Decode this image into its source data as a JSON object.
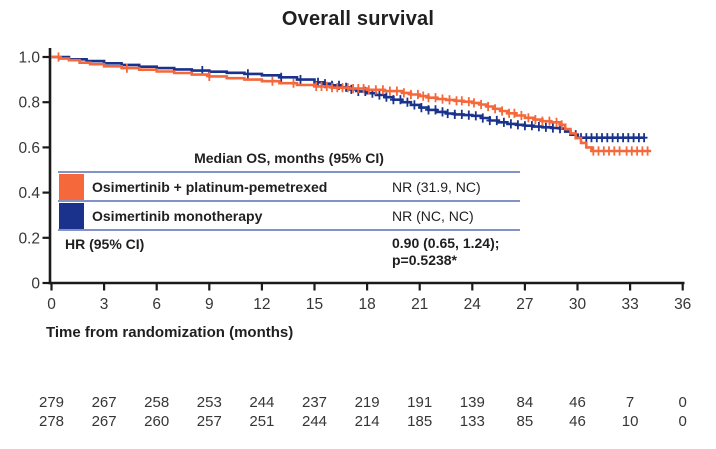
{
  "colors": {
    "axis": "#1a1a1a",
    "tick_text": "#363636",
    "text": "#1f1f1f",
    "table_rule": "#8193c7",
    "orange": "#f4683c",
    "navy": "#1a328c"
  },
  "chart_data": {
    "type": "line",
    "subtype": "kaplan-meier-step",
    "title": "Overall survival",
    "xlabel": "Time from randomization (months)",
    "ylabel": "",
    "xlim": [
      0,
      36
    ],
    "ylim": [
      0,
      1.0
    ],
    "grid": false,
    "x_ticks": [
      0,
      3,
      6,
      9,
      12,
      15,
      18,
      21,
      24,
      27,
      30,
      33,
      36
    ],
    "y_ticks": [
      {
        "label": "1.0",
        "value": 1.0
      },
      {
        "label": "0.8",
        "value": 0.8
      },
      {
        "label": "0.6",
        "value": 0.6
      },
      {
        "label": "0.4",
        "value": 0.4
      },
      {
        "label": "0.2",
        "value": 0.2
      },
      {
        "label": "0",
        "value": 0.0
      }
    ],
    "series": [
      {
        "name": "Osimertinib + platinum-pemetrexed",
        "color": "#f4683c",
        "end_time": 34.2,
        "points": [
          [
            0,
            1.0
          ],
          [
            0.5,
            0.993
          ],
          [
            1,
            0.986
          ],
          [
            1.6,
            0.975
          ],
          [
            2.2,
            0.968
          ],
          [
            3,
            0.959
          ],
          [
            4,
            0.951
          ],
          [
            5,
            0.944
          ],
          [
            6,
            0.936
          ],
          [
            7,
            0.929
          ],
          [
            8,
            0.922
          ],
          [
            9,
            0.914
          ],
          [
            10,
            0.906
          ],
          [
            11,
            0.9
          ],
          [
            12,
            0.893
          ],
          [
            13,
            0.884
          ],
          [
            14,
            0.876
          ],
          [
            15,
            0.87
          ],
          [
            16,
            0.864
          ],
          [
            17,
            0.86
          ],
          [
            18,
            0.855
          ],
          [
            19,
            0.849
          ],
          [
            20,
            0.841
          ],
          [
            20.5,
            0.834
          ],
          [
            21,
            0.827
          ],
          [
            21.5,
            0.82
          ],
          [
            22,
            0.814
          ],
          [
            22.5,
            0.81
          ],
          [
            23,
            0.806
          ],
          [
            23.5,
            0.802
          ],
          [
            24,
            0.797
          ],
          [
            24.4,
            0.79
          ],
          [
            24.8,
            0.781
          ],
          [
            25.2,
            0.771
          ],
          [
            25.6,
            0.761
          ],
          [
            26,
            0.751
          ],
          [
            26.5,
            0.741
          ],
          [
            27,
            0.731
          ],
          [
            27.5,
            0.723
          ],
          [
            28,
            0.716
          ],
          [
            28.5,
            0.711
          ],
          [
            29,
            0.7
          ],
          [
            29.3,
            0.681
          ],
          [
            29.6,
            0.662
          ],
          [
            29.9,
            0.641
          ],
          [
            30.2,
            0.62
          ],
          [
            30.5,
            0.6
          ],
          [
            30.8,
            0.584
          ]
        ],
        "censor_times": [
          0.4,
          4.3,
          9.0,
          12.6,
          13.8,
          15.1,
          15.4,
          15.7,
          16.0,
          16.3,
          16.6,
          16.9,
          17.2,
          17.5,
          17.8,
          18.1,
          18.5,
          18.9,
          19.3,
          19.7,
          20.1,
          20.5,
          20.9,
          21.2,
          21.5,
          21.9,
          22.3,
          22.7,
          23.1,
          23.4,
          23.8,
          24.1,
          24.5,
          24.9,
          25.3,
          25.7,
          26.1,
          26.4,
          26.8,
          27.2,
          27.6,
          28.0,
          28.4,
          28.8,
          29.1,
          30.9,
          31.2,
          31.5,
          31.8,
          32.1,
          32.4,
          32.8,
          33.1,
          33.4,
          33.7,
          34.0
        ]
      },
      {
        "name": "Osimertinib monotherapy",
        "color": "#1a328c",
        "end_time": 33.8,
        "points": [
          [
            0,
            1.0
          ],
          [
            1,
            0.99
          ],
          [
            2,
            0.982
          ],
          [
            3,
            0.972
          ],
          [
            4,
            0.965
          ],
          [
            5,
            0.957
          ],
          [
            6,
            0.951
          ],
          [
            7,
            0.945
          ],
          [
            8,
            0.94
          ],
          [
            9,
            0.935
          ],
          [
            10,
            0.93
          ],
          [
            11,
            0.925
          ],
          [
            12,
            0.919
          ],
          [
            13,
            0.91
          ],
          [
            14,
            0.9
          ],
          [
            15,
            0.888
          ],
          [
            15.5,
            0.882
          ],
          [
            16,
            0.875
          ],
          [
            16.5,
            0.866
          ],
          [
            17,
            0.857
          ],
          [
            17.5,
            0.848
          ],
          [
            18,
            0.84
          ],
          [
            18.5,
            0.832
          ],
          [
            19,
            0.822
          ],
          [
            19.5,
            0.811
          ],
          [
            20,
            0.8
          ],
          [
            20.5,
            0.788
          ],
          [
            21,
            0.776
          ],
          [
            21.5,
            0.766
          ],
          [
            22,
            0.757
          ],
          [
            22.5,
            0.75
          ],
          [
            23,
            0.746
          ],
          [
            23.5,
            0.743
          ],
          [
            24,
            0.74
          ],
          [
            24.5,
            0.73
          ],
          [
            25,
            0.719
          ],
          [
            25.5,
            0.711
          ],
          [
            26,
            0.704
          ],
          [
            26.5,
            0.7
          ],
          [
            27,
            0.696
          ],
          [
            27.5,
            0.692
          ],
          [
            28,
            0.689
          ],
          [
            28.5,
            0.686
          ],
          [
            29,
            0.683
          ],
          [
            29.3,
            0.67
          ],
          [
            29.6,
            0.656
          ],
          [
            30,
            0.643
          ]
        ],
        "censor_times": [
          8.6,
          11.2,
          13.1,
          14.2,
          15.2,
          15.6,
          16.0,
          16.4,
          16.8,
          17.1,
          17.5,
          17.9,
          18.3,
          18.7,
          19.1,
          19.5,
          19.9,
          20.3,
          20.7,
          21.1,
          21.5,
          21.9,
          22.3,
          22.6,
          23.0,
          23.4,
          23.8,
          24.2,
          24.6,
          25.0,
          25.4,
          25.8,
          26.2,
          26.6,
          27.0,
          27.4,
          27.8,
          28.2,
          28.6,
          29.0,
          29.9,
          30.2,
          30.5,
          30.8,
          31.1,
          31.4,
          31.7,
          32.0,
          32.3,
          32.6,
          32.9,
          33.2,
          33.5,
          33.8
        ]
      }
    ],
    "at_risk": {
      "times": [
        0,
        3,
        6,
        9,
        12,
        15,
        18,
        21,
        24,
        27,
        30,
        33,
        36
      ],
      "rows": [
        {
          "name": "Osimertinib + platinum-pemetrexed",
          "counts": [
            279,
            267,
            258,
            253,
            244,
            237,
            219,
            191,
            139,
            84,
            46,
            7,
            0
          ]
        },
        {
          "name": "Osimertinib monotherapy",
          "counts": [
            278,
            267,
            260,
            257,
            251,
            244,
            214,
            185,
            133,
            85,
            46,
            10,
            0
          ]
        }
      ]
    }
  },
  "overlay_table": {
    "header": "Median OS, months (95% CI)",
    "rows": [
      {
        "label": "Osimertinib + platinum-pemetrexed",
        "value": "NR (31.9, NC)",
        "swatch": "#f4683c"
      },
      {
        "label": "Osimertinib monotherapy",
        "value": "NR (NC, NC)",
        "swatch": "#1a328c"
      }
    ],
    "hr_label": "HR (95% CI)",
    "hr_value_line1": "0.90 (0.65, 1.24);",
    "hr_value_line2": "p=0.5238*"
  }
}
